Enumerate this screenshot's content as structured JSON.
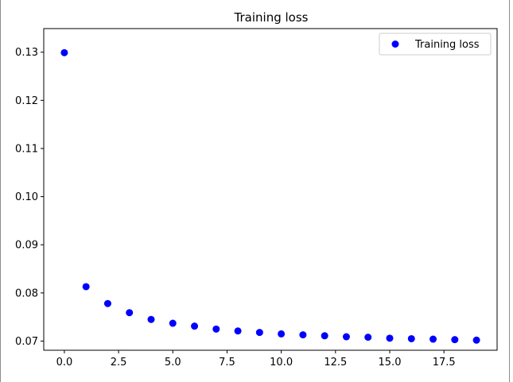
{
  "chart_data": {
    "type": "scatter",
    "title": "Training loss",
    "xlabel": "",
    "ylabel": "",
    "xlim": [
      -0.95,
      19.95
    ],
    "ylim": [
      0.0681,
      0.1349
    ],
    "xticks": [
      0.0,
      2.5,
      5.0,
      7.5,
      10.0,
      12.5,
      15.0,
      17.5
    ],
    "xtick_labels": [
      "0.0",
      "2.5",
      "5.0",
      "7.5",
      "10.0",
      "12.5",
      "15.0",
      "17.5"
    ],
    "yticks": [
      0.07,
      0.08,
      0.09,
      0.1,
      0.11,
      0.12,
      0.13
    ],
    "ytick_labels": [
      "0.07",
      "0.08",
      "0.09",
      "0.10",
      "0.11",
      "0.12",
      "0.13"
    ],
    "grid": false,
    "legend_position": "top-right",
    "series": [
      {
        "name": "Training loss",
        "color": "#0000ff",
        "marker": "circle",
        "x": [
          0,
          1,
          2,
          3,
          4,
          5,
          6,
          7,
          8,
          9,
          10,
          11,
          12,
          13,
          14,
          15,
          16,
          17,
          18,
          19
        ],
        "y": [
          0.1299,
          0.0813,
          0.0778,
          0.0759,
          0.0745,
          0.0737,
          0.0731,
          0.0725,
          0.0721,
          0.0718,
          0.0715,
          0.0713,
          0.0711,
          0.0709,
          0.0708,
          0.0706,
          0.0705,
          0.0704,
          0.0703,
          0.0702
        ]
      }
    ]
  }
}
